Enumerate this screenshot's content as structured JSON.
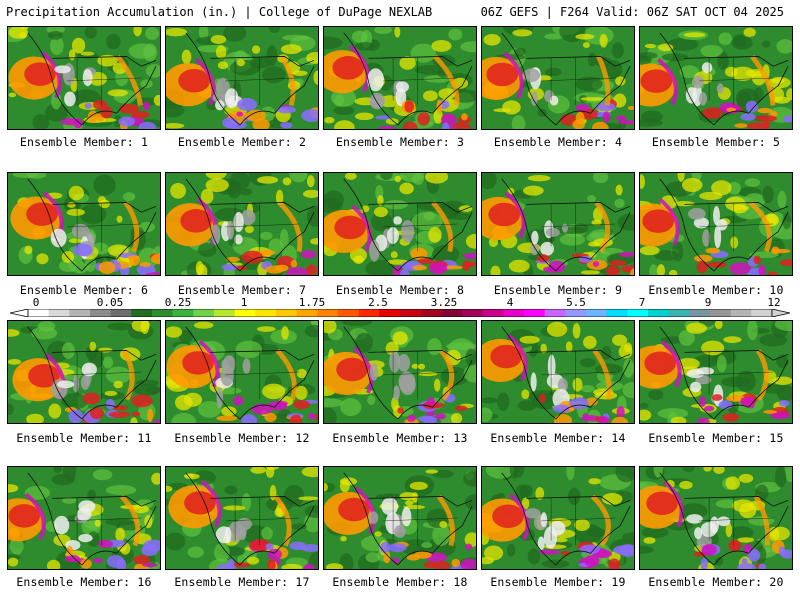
{
  "header": {
    "title": "Precipitation Accumulation (in.) | College of DuPage NEXLAB",
    "run_info": "06Z GEFS | F264 Valid: 06Z SAT OCT 04 2025"
  },
  "colorbar": {
    "tick_labels": [
      "0",
      "0.05",
      "0.25",
      "1",
      "1.75",
      "2.5",
      "3.25",
      "4",
      "5.5",
      "7",
      "9",
      "12"
    ],
    "colors": [
      "#ffffff",
      "#d9d9d9",
      "#b4b4b4",
      "#8c8c8c",
      "#6e6e6e",
      "#1e6e1e",
      "#2d8c2d",
      "#3cb43c",
      "#6ed24b",
      "#b4e632",
      "#ffff00",
      "#ffe600",
      "#ffc800",
      "#ffa500",
      "#ff8200",
      "#ff5a00",
      "#ff2800",
      "#e60000",
      "#c80014",
      "#a0001e",
      "#820032",
      "#a0005a",
      "#c8008c",
      "#e600c8",
      "#ff00ff",
      "#c864ff",
      "#9696ff",
      "#6eb4ff",
      "#00dcff",
      "#00ffff",
      "#00d2d2",
      "#3cb4b4",
      "#7896a0",
      "#969696",
      "#b4b4b4",
      "#d2d2d2"
    ]
  },
  "members": [
    {
      "label": "Ensemble Member: 1"
    },
    {
      "label": "Ensemble Member: 2"
    },
    {
      "label": "Ensemble Member: 3"
    },
    {
      "label": "Ensemble Member: 4"
    },
    {
      "label": "Ensemble Member: 5"
    },
    {
      "label": "Ensemble Member: 6"
    },
    {
      "label": "Ensemble Member: 7"
    },
    {
      "label": "Ensemble Member: 8"
    },
    {
      "label": "Ensemble Member: 9"
    },
    {
      "label": "Ensemble Member: 10"
    },
    {
      "label": "Ensemble Member: 11"
    },
    {
      "label": "Ensemble Member: 12"
    },
    {
      "label": "Ensemble Member: 13"
    },
    {
      "label": "Ensemble Member: 14"
    },
    {
      "label": "Ensemble Member: 15"
    },
    {
      "label": "Ensemble Member: 16"
    },
    {
      "label": "Ensemble Member: 17"
    },
    {
      "label": "Ensemble Member: 18"
    },
    {
      "label": "Ensemble Member: 19"
    },
    {
      "label": "Ensemble Member: 20"
    }
  ],
  "map_colors": {
    "land_green": "#2e8b2e",
    "dark_green": "#1f6a1f",
    "light_green": "#5fc23f",
    "yellow": "#e6e600",
    "orange": "#ff9900",
    "red": "#e02020",
    "magenta": "#d010c0",
    "purple": "#8a6cff",
    "gray": "#a0a0a0",
    "white": "#eeeeee",
    "boundary": "#111111"
  }
}
